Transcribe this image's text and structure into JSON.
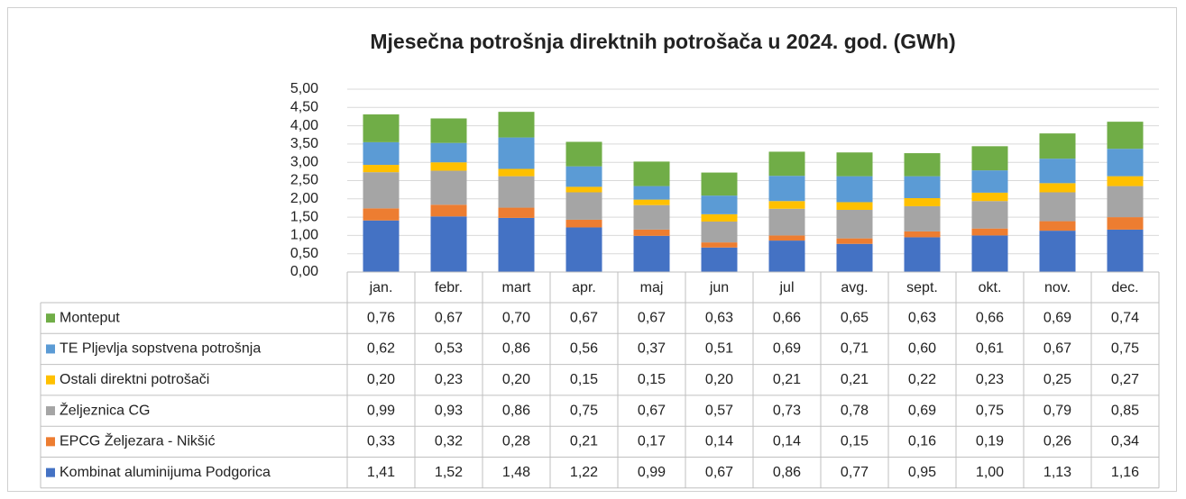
{
  "chart_data": {
    "type": "stacked_bar",
    "title": "Mjesečna potrošnja direktnih potrošača u 2024. god. (GWh)",
    "categories": [
      "jan.",
      "febr.",
      "mart",
      "apr.",
      "maj",
      "jun",
      "jul",
      "avg.",
      "sept.",
      "okt.",
      "nov.",
      "dec."
    ],
    "ylim": [
      0,
      5
    ],
    "yticks": [
      {
        "value": 0,
        "label": "0,00"
      },
      {
        "value": 0.5,
        "label": "0,50"
      },
      {
        "value": 1,
        "label": "1,00"
      },
      {
        "value": 1.5,
        "label": "1,50"
      },
      {
        "value": 2,
        "label": "2,00"
      },
      {
        "value": 2.5,
        "label": "2,50"
      },
      {
        "value": 3,
        "label": "3,00"
      },
      {
        "value": 3.5,
        "label": "3,50"
      },
      {
        "value": 4,
        "label": "4,00"
      },
      {
        "value": 4.5,
        "label": "4,50"
      },
      {
        "value": 5,
        "label": "5,00"
      }
    ],
    "grid": true,
    "series": [
      {
        "name": "Kombinat aluminijuma Podgorica",
        "color": "#4472c4",
        "values": [
          1.41,
          1.52,
          1.48,
          1.22,
          0.99,
          0.67,
          0.86,
          0.77,
          0.95,
          1.0,
          1.13,
          1.16
        ],
        "value_labels": [
          "1,41",
          "1,52",
          "1,48",
          "1,22",
          "0,99",
          "0,67",
          "0,86",
          "0,77",
          "0,95",
          "1,00",
          "1,13",
          "1,16"
        ]
      },
      {
        "name": "EPCG Željezara - Nikšić",
        "color": "#ed7d31",
        "values": [
          0.33,
          0.32,
          0.28,
          0.21,
          0.17,
          0.14,
          0.14,
          0.15,
          0.16,
          0.19,
          0.26,
          0.34
        ],
        "value_labels": [
          "0,33",
          "0,32",
          "0,28",
          "0,21",
          "0,17",
          "0,14",
          "0,14",
          "0,15",
          "0,16",
          "0,19",
          "0,26",
          "0,34"
        ]
      },
      {
        "name": "Željeznica CG",
        "color": "#a5a5a5",
        "values": [
          0.99,
          0.93,
          0.86,
          0.75,
          0.67,
          0.57,
          0.73,
          0.78,
          0.69,
          0.75,
          0.79,
          0.85
        ],
        "value_labels": [
          "0,99",
          "0,93",
          "0,86",
          "0,75",
          "0,67",
          "0,57",
          "0,73",
          "0,78",
          "0,69",
          "0,75",
          "0,79",
          "0,85"
        ]
      },
      {
        "name": "Ostali direktni potrošači",
        "color": "#ffc000",
        "values": [
          0.2,
          0.23,
          0.2,
          0.15,
          0.15,
          0.2,
          0.21,
          0.21,
          0.22,
          0.23,
          0.25,
          0.27
        ],
        "value_labels": [
          "0,20",
          "0,23",
          "0,20",
          "0,15",
          "0,15",
          "0,20",
          "0,21",
          "0,21",
          "0,22",
          "0,23",
          "0,25",
          "0,27"
        ]
      },
      {
        "name": "TE Pljevlja sopstvena potrošnja",
        "color": "#5b9bd5",
        "values": [
          0.62,
          0.53,
          0.86,
          0.56,
          0.37,
          0.51,
          0.69,
          0.71,
          0.6,
          0.61,
          0.67,
          0.75
        ],
        "value_labels": [
          "0,62",
          "0,53",
          "0,86",
          "0,56",
          "0,37",
          "0,51",
          "0,69",
          "0,71",
          "0,60",
          "0,61",
          "0,67",
          "0,75"
        ]
      },
      {
        "name": "Monteput",
        "color": "#70ad47",
        "values": [
          0.76,
          0.67,
          0.7,
          0.67,
          0.67,
          0.63,
          0.66,
          0.65,
          0.63,
          0.66,
          0.69,
          0.74
        ],
        "value_labels": [
          "0,76",
          "0,67",
          "0,70",
          "0,67",
          "0,67",
          "0,63",
          "0,66",
          "0,65",
          "0,63",
          "0,66",
          "0,69",
          "0,74"
        ]
      }
    ]
  }
}
